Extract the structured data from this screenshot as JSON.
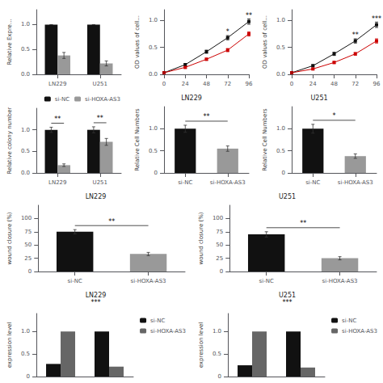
{
  "chart_data": [
    {
      "type": "bar",
      "ylabel": "Relative Expre...",
      "categories": [
        "LN229",
        "U251"
      ],
      "series": [
        {
          "color": "#111111",
          "values": [
            1.0,
            1.0
          ],
          "errors": [
            0.0,
            0.0
          ]
        },
        {
          "color": "#999999",
          "values": [
            0.38,
            0.22
          ],
          "errors": [
            0.06,
            0.05
          ]
        }
      ],
      "ylim": [
        0,
        1.3
      ],
      "yticks": [
        {
          "value": 0,
          "label": "0.0"
        },
        0.5,
        {
          "value": 1,
          "label": "1.0"
        }
      ],
      "grid": false
    },
    {
      "type": "line",
      "ylabel": "OD values of cell...",
      "x": [
        0,
        24,
        48,
        72,
        96
      ],
      "series": [
        {
          "color": "#111111",
          "marker": "square",
          "values": [
            0.03,
            0.18,
            0.42,
            0.68,
            0.98
          ],
          "errors": [
            0.01,
            0.02,
            0.03,
            0.04,
            0.05
          ]
        },
        {
          "color": "#cc0000",
          "marker": "square",
          "values": [
            0.03,
            0.13,
            0.28,
            0.45,
            0.75
          ],
          "errors": [
            0.01,
            0.02,
            0.02,
            0.03,
            0.04
          ]
        }
      ],
      "xlim": [
        0,
        96
      ],
      "xticks": [
        0,
        24,
        48,
        72,
        96
      ],
      "ylim": [
        0,
        1.2
      ],
      "yticks": [
        {
          "value": 0,
          "label": "0.0"
        },
        0.5,
        {
          "value": 1,
          "label": "1.0"
        }
      ],
      "annotations": [
        {
          "text": "*",
          "x": 72
        },
        {
          "text": "**",
          "x": 96
        }
      ],
      "grid": false
    },
    {
      "type": "line",
      "ylabel": "OD values of cell...",
      "x": [
        0,
        24,
        48,
        72,
        96
      ],
      "series": [
        {
          "color": "#111111",
          "marker": "square",
          "values": [
            0.03,
            0.16,
            0.38,
            0.62,
            0.92
          ],
          "errors": [
            0.01,
            0.02,
            0.03,
            0.04,
            0.05
          ]
        },
        {
          "color": "#cc0000",
          "marker": "square",
          "values": [
            0.03,
            0.1,
            0.22,
            0.38,
            0.62
          ],
          "errors": [
            0.01,
            0.015,
            0.02,
            0.025,
            0.04
          ]
        }
      ],
      "xlim": [
        0,
        96
      ],
      "xticks": [
        0,
        24,
        48,
        72,
        96
      ],
      "ylim": [
        0,
        1.2
      ],
      "yticks": [
        {
          "value": 0,
          "label": "0.0"
        },
        0.5,
        {
          "value": 1,
          "label": "1.0"
        }
      ],
      "annotations": [
        {
          "text": "**",
          "x": 72
        },
        {
          "text": "***",
          "x": 96
        }
      ],
      "grid": false
    },
    {
      "type": "bar",
      "ylabel": "Relative colony number",
      "categories": [
        "LN229",
        "U251"
      ],
      "series": [
        {
          "name": "si-NC",
          "color": "#111111",
          "values": [
            1.0,
            1.0
          ],
          "errors": [
            0.06,
            0.07
          ]
        },
        {
          "name": "si-HOXA-AS3",
          "color": "#999999",
          "values": [
            0.18,
            0.72
          ],
          "errors": [
            0.03,
            0.08
          ]
        }
      ],
      "ylim": [
        0,
        1.5
      ],
      "yticks": [
        {
          "value": 0,
          "label": "0.0"
        },
        0.5,
        {
          "value": 1,
          "label": "1.0"
        }
      ],
      "annotations": [
        {
          "text": "**",
          "category": "LN229"
        },
        {
          "text": "**",
          "category": "U251"
        }
      ],
      "legend": "upper right",
      "grid": false
    },
    {
      "type": "bar",
      "title": "LN229",
      "ylabel": "Relative Cell Numbers",
      "categories": [
        "si-NC",
        "si-HOXA-AS3"
      ],
      "values": [
        1.0,
        0.55
      ],
      "errors": [
        0.08,
        0.06
      ],
      "colors": [
        "#111111",
        "#999999"
      ],
      "ylim": [
        0,
        1.5
      ],
      "yticks": [
        0,
        0.5,
        {
          "value": 1,
          "label": "1.0"
        }
      ],
      "annotations": [
        {
          "text": "**",
          "categories": [
            "si-NC",
            "si-HOXA-AS3"
          ]
        }
      ],
      "grid": false
    },
    {
      "type": "bar",
      "title": "U251",
      "ylabel": "Relative Cell Numbers",
      "categories": [
        "si-NC",
        "si-HOXA-AS3"
      ],
      "values": [
        1.0,
        0.38
      ],
      "errors": [
        0.1,
        0.05
      ],
      "colors": [
        "#111111",
        "#999999"
      ],
      "ylim": [
        0,
        1.5
      ],
      "yticks": [
        0,
        0.5,
        {
          "value": 1,
          "label": "1.0"
        }
      ],
      "annotations": [
        {
          "text": "*",
          "categories": [
            "si-NC",
            "si-HOXA-AS3"
          ]
        }
      ],
      "grid": false
    },
    {
      "type": "bar",
      "title": "LN229",
      "ylabel": "wound closure (%)",
      "categories": [
        "si-NC",
        "si-HOXA-AS3"
      ],
      "values": [
        75,
        33
      ],
      "errors": [
        4,
        3
      ],
      "colors": [
        "#111111",
        "#999999"
      ],
      "ylim": [
        0,
        125
      ],
      "yticks": [
        0,
        25,
        50,
        75,
        100
      ],
      "annotations": [
        {
          "text": "**",
          "categories": [
            "si-NC",
            "si-HOXA-AS3"
          ]
        }
      ],
      "grid": false
    },
    {
      "type": "bar",
      "title": "U251",
      "ylabel": "wound closure (%)",
      "categories": [
        "si-NC",
        "si-HOXA-AS3"
      ],
      "values": [
        70,
        25
      ],
      "errors": [
        5,
        3
      ],
      "colors": [
        "#111111",
        "#999999"
      ],
      "ylim": [
        0,
        125
      ],
      "yticks": [
        0,
        25,
        50,
        75,
        100
      ],
      "annotations": [
        {
          "text": "**",
          "categories": [
            "si-NC",
            "si-HOXA-AS3"
          ]
        }
      ],
      "grid": false
    },
    {
      "type": "bar",
      "title": "LN229",
      "ylabel": "expression level",
      "categories": [
        null,
        null
      ],
      "series": [
        {
          "name": "si-NC",
          "color": "#111111",
          "values": [
            0.28,
            1.0
          ]
        },
        {
          "name": "si-HOXA-AS3",
          "color": "#666666",
          "values": [
            1.0,
            0.22
          ]
        }
      ],
      "ylim": [
        0,
        1.4
      ],
      "yticks": [
        0,
        0.5,
        {
          "value": 1,
          "label": "1.0"
        }
      ],
      "annotations": [
        {
          "text": "***"
        }
      ],
      "legend": "upper right",
      "tick_labels": "y",
      "grid": false
    },
    {
      "type": "bar",
      "title": "U251",
      "ylabel": "expression level",
      "categories": [
        null,
        null
      ],
      "series": [
        {
          "name": "si-NC",
          "color": "#111111",
          "values": [
            0.25,
            1.0
          ]
        },
        {
          "name": "si-HOXA-AS3",
          "color": "#666666",
          "values": [
            1.0,
            0.2
          ]
        }
      ],
      "ylim": [
        0,
        1.4
      ],
      "yticks": [
        0,
        0.5,
        {
          "value": 1,
          "label": "1.0"
        }
      ],
      "annotations": [
        {
          "text": "***"
        }
      ],
      "legend": "upper right",
      "tick_labels": "y",
      "grid": false
    }
  ]
}
